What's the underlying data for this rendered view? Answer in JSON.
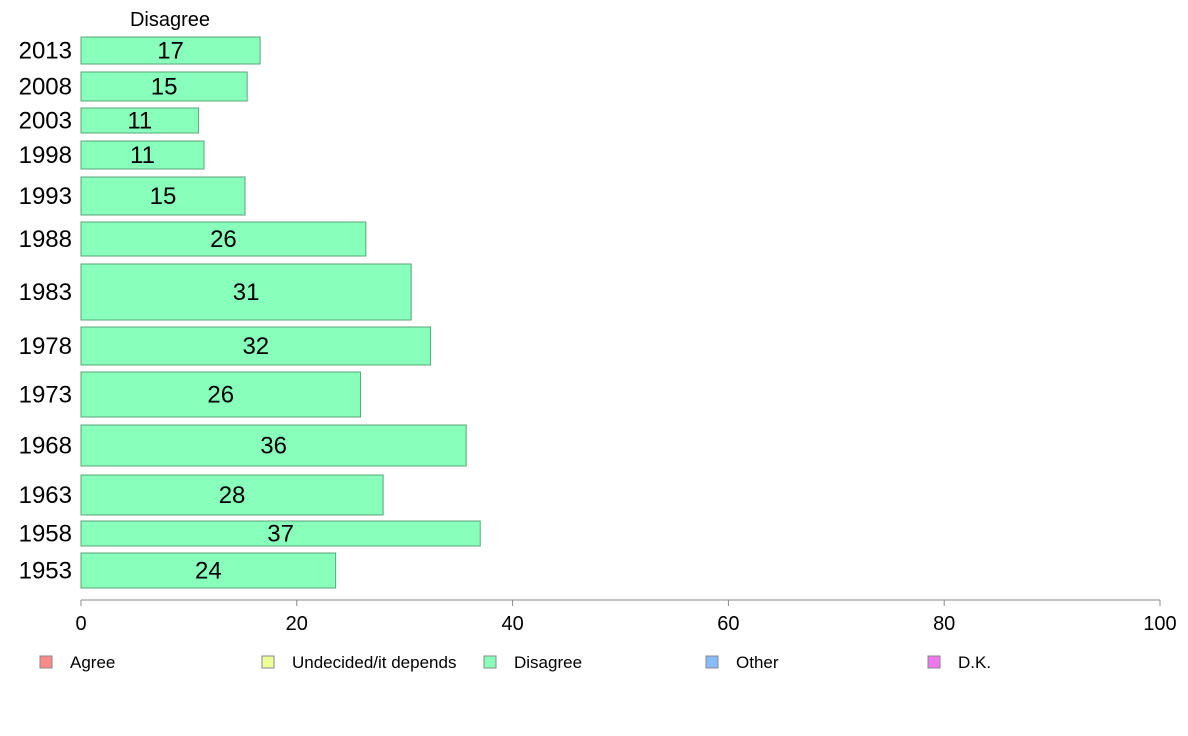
{
  "chart_data": {
    "type": "bar",
    "orientation": "horizontal",
    "column_header": "Disagree",
    "categories": [
      "2013",
      "2008",
      "2003",
      "1998",
      "1993",
      "1988",
      "1983",
      "1978",
      "1973",
      "1968",
      "1963",
      "1958",
      "1953"
    ],
    "values": [
      16.6,
      15.4,
      10.9,
      11.4,
      15.2,
      26.4,
      30.6,
      32.4,
      25.9,
      35.7,
      28.0,
      37.0,
      23.6
    ],
    "value_labels": [
      "17",
      "15",
      "11",
      "11",
      "15",
      "26",
      "31",
      "32",
      "26",
      "36",
      "28",
      "37",
      "24"
    ],
    "series": [
      {
        "name": "Disagree",
        "color": "#88ffbb"
      }
    ],
    "xlim": [
      0,
      100
    ],
    "xticks": [
      0,
      20,
      40,
      60,
      80,
      100
    ],
    "xlabel": "",
    "ylabel": "",
    "grid": false,
    "legend": {
      "placement": "bottom",
      "items": [
        {
          "label": "Agree",
          "color": "#ff8888"
        },
        {
          "label": "Undecided/it depends",
          "color": "#eeff99"
        },
        {
          "label": "Disagree",
          "color": "#88ffbb"
        },
        {
          "label": "Other",
          "color": "#88bbff"
        },
        {
          "label": "D.K.",
          "color": "#ee77ee"
        }
      ]
    }
  }
}
